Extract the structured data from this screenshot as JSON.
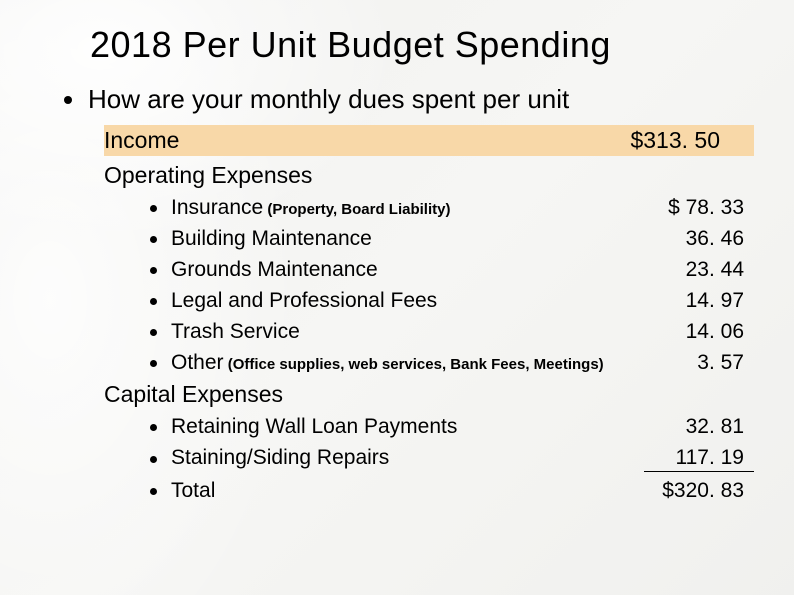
{
  "title": "2018 Per Unit Budget Spending",
  "subtitle": "How are your monthly dues spent per unit",
  "income": {
    "label": "Income",
    "value": "$313. 50"
  },
  "operating": {
    "header": "Operating Expenses",
    "items": [
      {
        "label": "Insurance",
        "note": " (Property, Board Liability)",
        "value": "$  78. 33"
      },
      {
        "label": "Building Maintenance",
        "note": "",
        "value": "36. 46"
      },
      {
        "label": "Grounds Maintenance",
        "note": "",
        "value": "23. 44"
      },
      {
        "label": "Legal and Professional Fees",
        "note": "",
        "value": "14. 97"
      },
      {
        "label": "Trash Service",
        "note": "",
        "value": "14. 06"
      },
      {
        "label": "Other",
        "note": " (Office supplies, web services, Bank Fees, Meetings)",
        "value": "3. 57"
      }
    ]
  },
  "capital": {
    "header": "Capital Expenses",
    "items": [
      {
        "label": "Retaining Wall Loan Payments",
        "value": "32. 81"
      },
      {
        "label": "Staining/Siding Repairs",
        "value": "117. 19",
        "underline": true
      },
      {
        "label": "Total",
        "value": "$320. 83"
      }
    ]
  },
  "colors": {
    "income_bg": "#f8d8a8",
    "text": "#000000",
    "background": "#f4f4f2"
  }
}
